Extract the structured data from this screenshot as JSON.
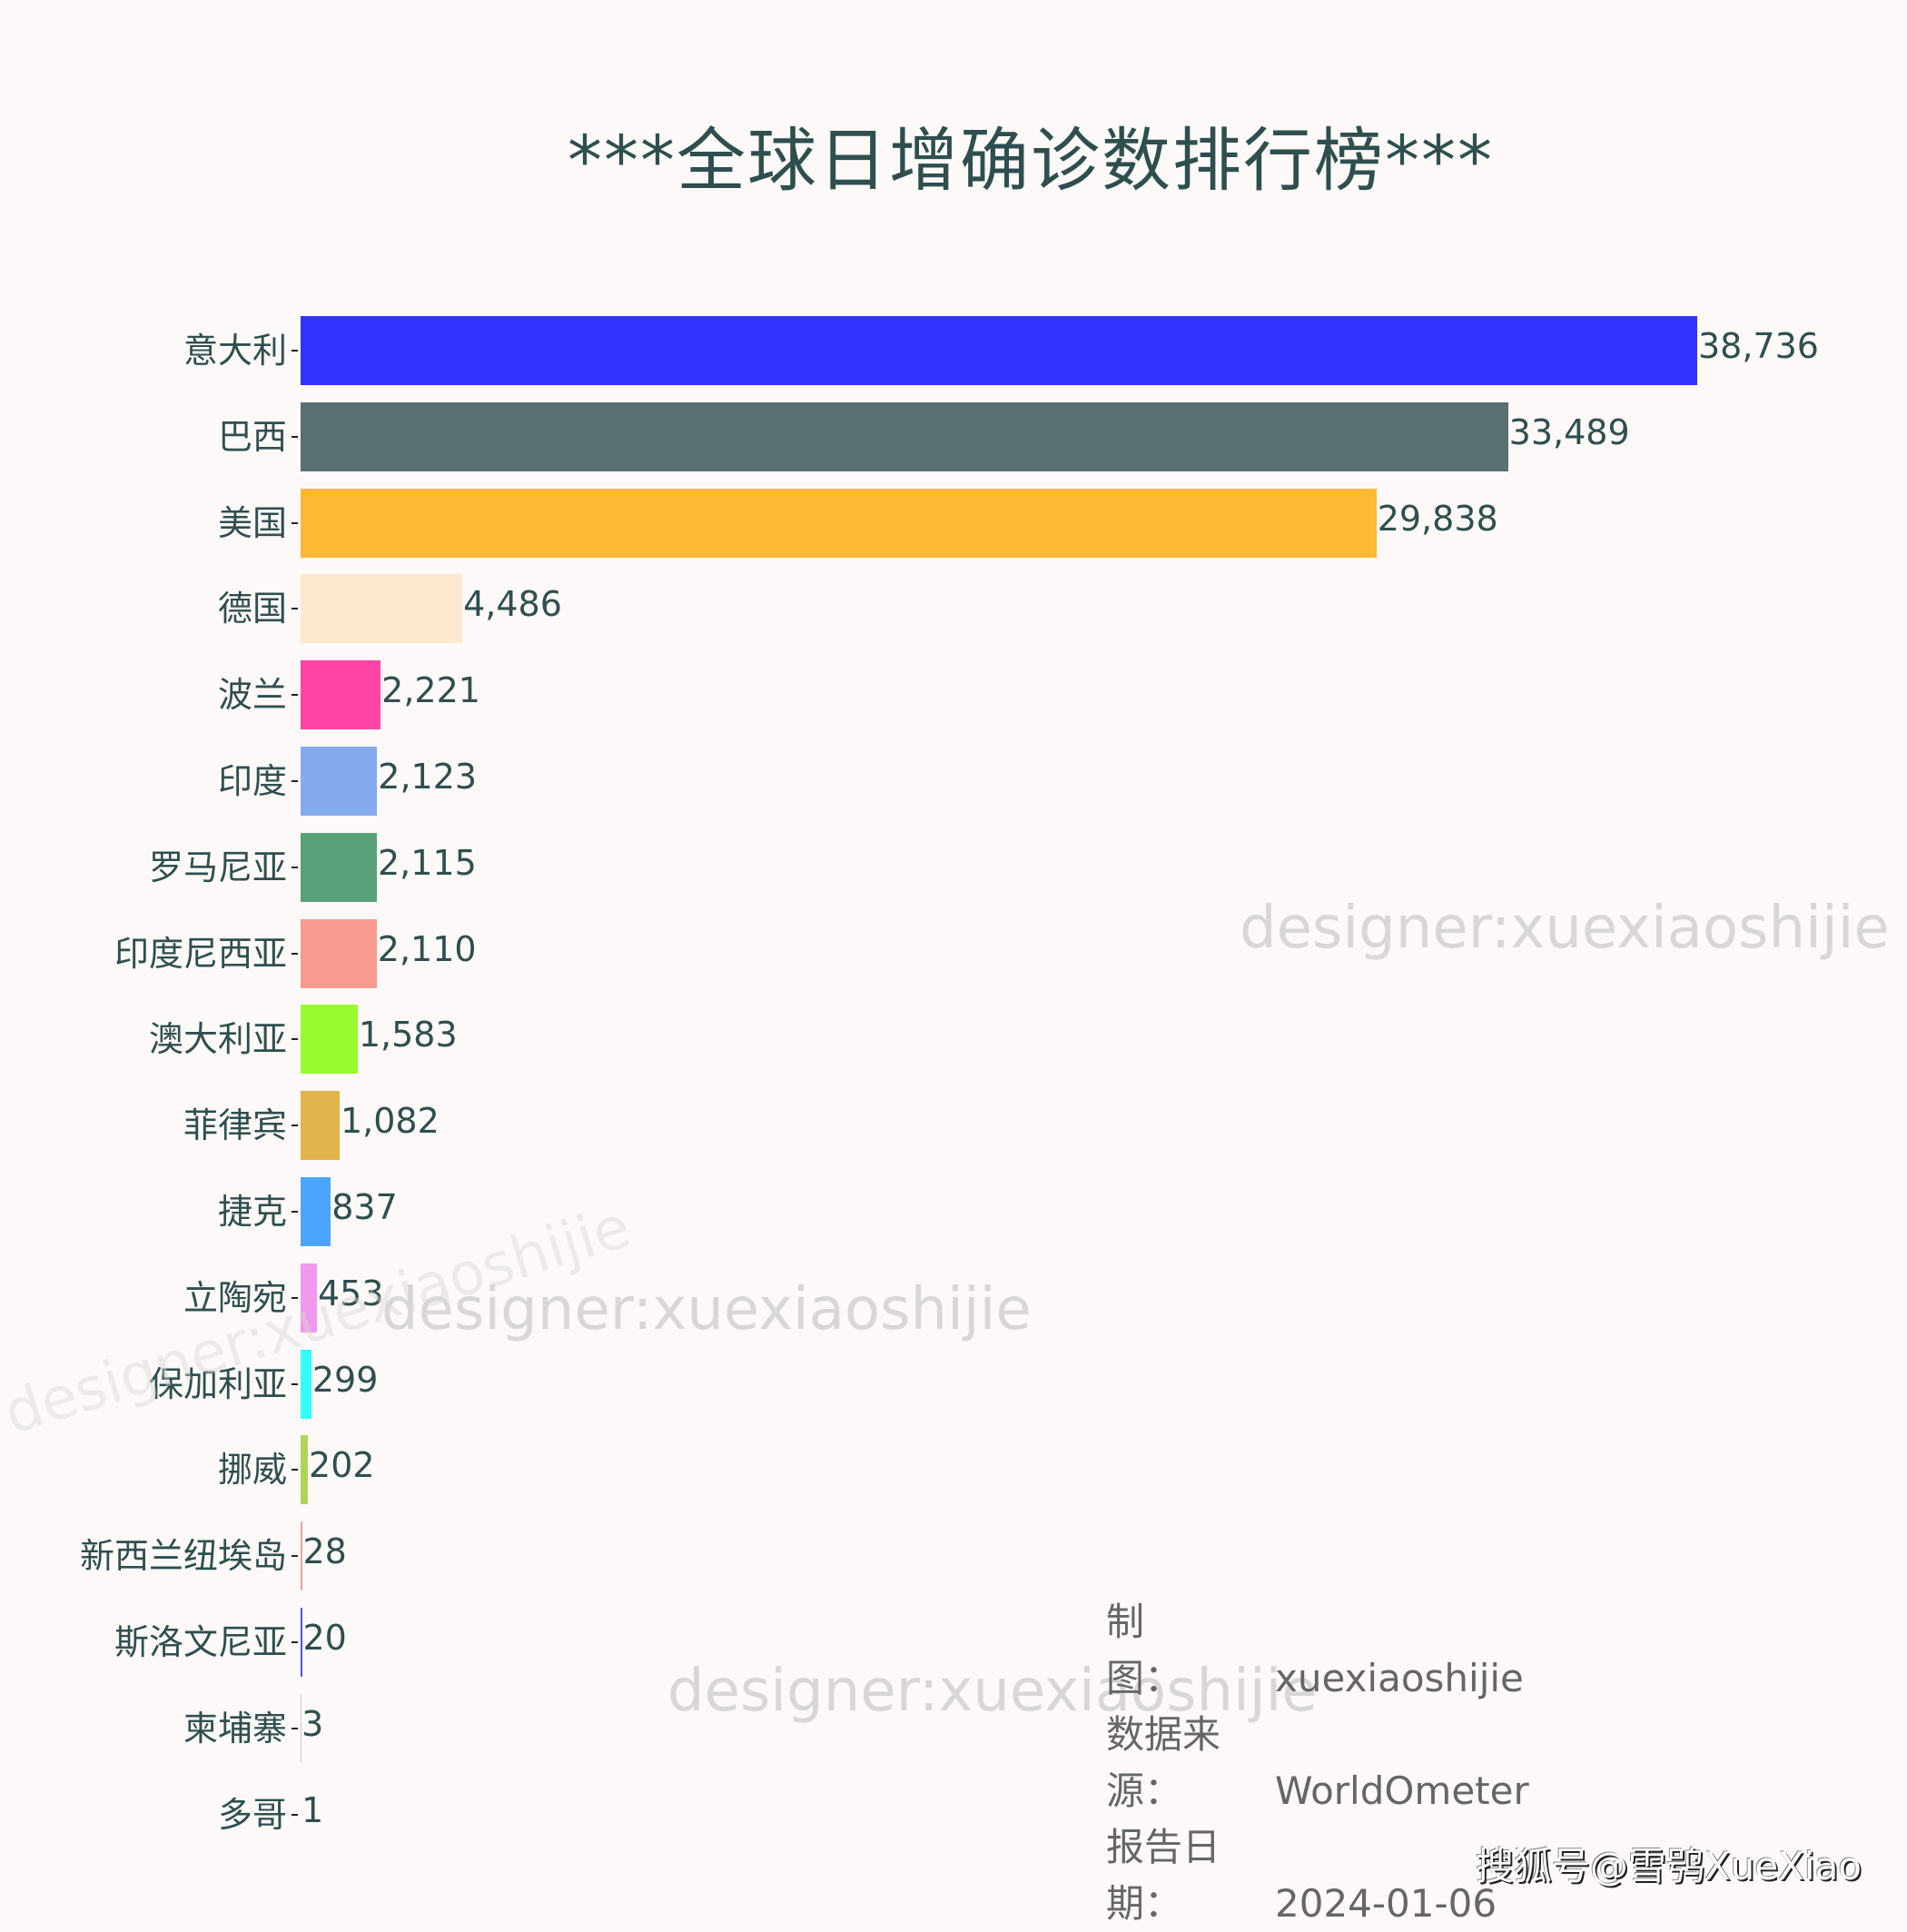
{
  "title": "***全球日增确诊数排行榜***",
  "chart_data": {
    "type": "bar",
    "orientation": "horizontal",
    "title": "***全球日增确诊数排行榜***",
    "xlabel": "",
    "ylabel": "",
    "grid": false,
    "categories": [
      "意大利",
      "巴西",
      "美国",
      "德国",
      "波兰",
      "印度",
      "罗马尼亚",
      "印度尼西亚",
      "澳大利亚",
      "菲律宾",
      "捷克",
      "立陶宛",
      "保加利亚",
      "挪威",
      "新西兰纽埃岛",
      "斯洛文尼亚",
      "柬埔寨",
      "多哥"
    ],
    "values": [
      38736,
      33489,
      29838,
      4486,
      2221,
      2123,
      2115,
      2110,
      1583,
      1082,
      837,
      453,
      299,
      202,
      28,
      20,
      3,
      1
    ],
    "value_labels": [
      "38,736",
      "33,489",
      "29,838",
      "4,486",
      "2,221",
      "2,123",
      "2,115",
      "2,110",
      "1,583",
      "1,082",
      "837",
      "453",
      "299",
      "202",
      "28",
      "20",
      "3",
      "1"
    ],
    "colors": [
      "#3333ff",
      "#5a7070",
      "#ffb833",
      "#ffe8d0",
      "#ff44a6",
      "#85aaee",
      "#58a078",
      "#f89a8e",
      "#9afa30",
      "#dfb44c",
      "#4ca4ff",
      "#f09aee",
      "#33ffff",
      "#b0d458",
      "#f0a0a8",
      "#5050e8",
      "#cccccc",
      "#cccccc"
    ]
  },
  "rows": [
    {
      "label": "意大利",
      "value": "38,736",
      "num": 38736,
      "color": "#3333ff"
    },
    {
      "label": "巴西",
      "value": "33,489",
      "num": 33489,
      "color": "#5a7070"
    },
    {
      "label": "美国",
      "value": "29,838",
      "num": 29838,
      "color": "#ffb833"
    },
    {
      "label": "德国",
      "value": "4,486",
      "num": 4486,
      "color": "#ffe8d0"
    },
    {
      "label": "波兰",
      "value": "2,221",
      "num": 2221,
      "color": "#ff44a6"
    },
    {
      "label": "印度",
      "value": "2,123",
      "num": 2123,
      "color": "#85aaee"
    },
    {
      "label": "罗马尼亚",
      "value": "2,115",
      "num": 2115,
      "color": "#58a078"
    },
    {
      "label": "印度尼西亚",
      "value": "2,110",
      "num": 2110,
      "color": "#f89a8e"
    },
    {
      "label": "澳大利亚",
      "value": "1,583",
      "num": 1583,
      "color": "#9afa30"
    },
    {
      "label": "菲律宾",
      "value": "1,082",
      "num": 1082,
      "color": "#dfb44c"
    },
    {
      "label": "捷克",
      "value": "837",
      "num": 837,
      "color": "#4ca4ff"
    },
    {
      "label": "立陶宛",
      "value": "453",
      "num": 453,
      "color": "#f09aee"
    },
    {
      "label": "保加利亚",
      "value": "299",
      "num": 299,
      "color": "#33ffff"
    },
    {
      "label": "挪威",
      "value": "202",
      "num": 202,
      "color": "#b0d458"
    },
    {
      "label": "新西兰纽埃岛",
      "value": "28",
      "num": 28,
      "color": "#f0a0a8"
    },
    {
      "label": "斯洛文尼亚",
      "value": "20",
      "num": 20,
      "color": "#5050e8"
    },
    {
      "label": "柬埔寨",
      "value": "3",
      "num": 3,
      "color": "#cccccc"
    },
    {
      "label": "多哥",
      "value": "1",
      "num": 1,
      "color": "#cccccc"
    }
  ],
  "notes": {
    "maker_label": "制　　图：",
    "maker_value": "xuexiaoshijie",
    "source_label": "数据来源：",
    "source_value": "WorldOmeter",
    "date_label": "报告日期：",
    "date_value": "2024-01-06"
  },
  "watermarks": {
    "text": "designer:xuexiaoshijie"
  },
  "footer": "搜狐号@雪鸮XueXiao"
}
